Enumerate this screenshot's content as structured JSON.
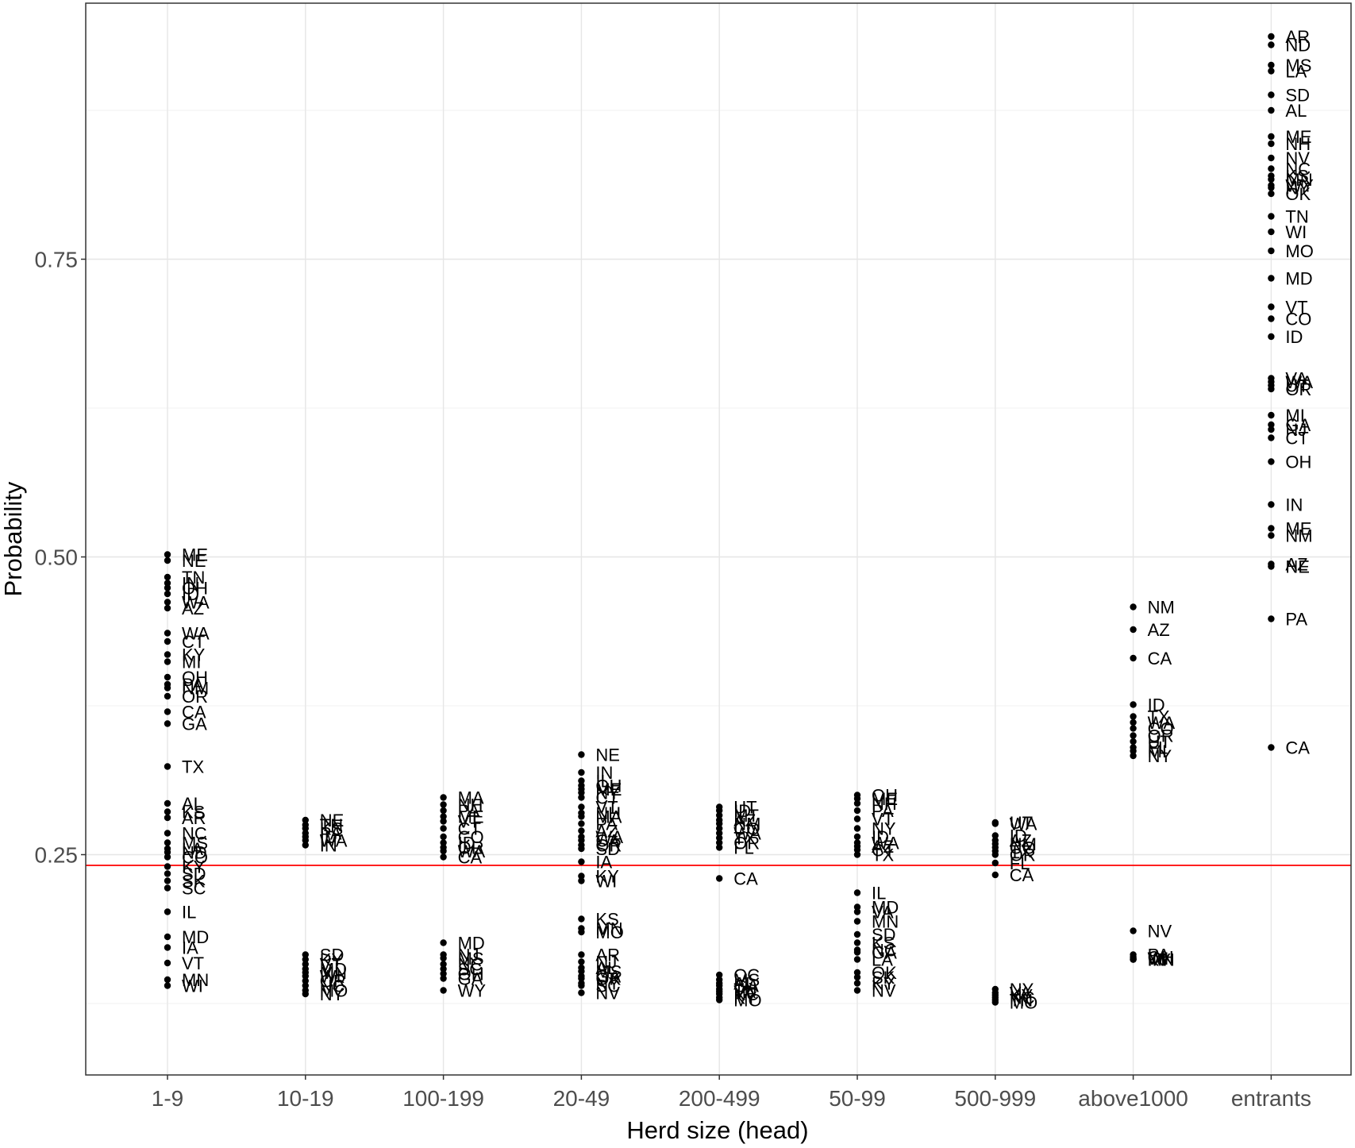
{
  "chart_data": {
    "type": "scatter",
    "xlabel": "Herd size (head)",
    "ylabel": "Probability",
    "categories": [
      "1-9",
      "10-19",
      "100-199",
      "20-49",
      "200-499",
      "50-99",
      "500-999",
      "above1000",
      "entrants"
    ],
    "ylim": [
      0.065,
      0.965
    ],
    "yticks": [
      0.25,
      0.5,
      0.75
    ],
    "ytick_labels": [
      "0.25",
      "0.50",
      "0.75"
    ],
    "reference_line": {
      "y": 0.241,
      "color": "#ff0000"
    },
    "grid": true,
    "legend": "none",
    "point_color": "#000000",
    "series": [
      {
        "category": "1-9",
        "points": [
          [
            "ME",
            0.502
          ],
          [
            "NE",
            0.497
          ],
          [
            "TN",
            0.483
          ],
          [
            "IN",
            0.478
          ],
          [
            "OH",
            0.474
          ],
          [
            "ID",
            0.469
          ],
          [
            "WA",
            0.462
          ],
          [
            "AZ",
            0.457
          ],
          [
            "WA",
            0.436
          ],
          [
            "CT",
            0.429
          ],
          [
            "KY",
            0.418
          ],
          [
            "MI",
            0.412
          ],
          [
            "OH",
            0.399
          ],
          [
            "PA",
            0.393
          ],
          [
            "NM",
            0.39
          ],
          [
            "OR",
            0.383
          ],
          [
            "CA",
            0.37
          ],
          [
            "GA",
            0.36
          ],
          [
            "TX",
            0.324
          ],
          [
            "AL",
            0.293
          ],
          [
            "KS",
            0.286
          ],
          [
            "AR",
            0.281
          ],
          [
            "NC",
            0.268
          ],
          [
            "MS",
            0.26
          ],
          [
            "LA",
            0.255
          ],
          [
            "ND",
            0.252
          ],
          [
            "CO",
            0.248
          ],
          [
            "KY",
            0.24
          ],
          [
            "SD",
            0.234
          ],
          [
            "SK",
            0.228
          ],
          [
            "SC",
            0.222
          ],
          [
            "IL",
            0.202
          ],
          [
            "MD",
            0.181
          ],
          [
            "IA",
            0.172
          ],
          [
            "VT",
            0.159
          ],
          [
            "MN",
            0.145
          ],
          [
            "WI",
            0.14
          ]
        ]
      },
      {
        "category": "10-19",
        "points": [
          [
            "NE",
            0.279
          ],
          [
            "TN",
            0.275
          ],
          [
            "KS",
            0.272
          ],
          [
            "PA",
            0.268
          ],
          [
            "ID",
            0.265
          ],
          [
            "WA",
            0.262
          ],
          [
            "IN",
            0.258
          ],
          [
            "SD",
            0.166
          ],
          [
            "KY",
            0.162
          ],
          [
            "VT",
            0.158
          ],
          [
            "MD",
            0.154
          ],
          [
            "MN",
            0.151
          ],
          [
            "WI",
            0.148
          ],
          [
            "OR",
            0.144
          ],
          [
            "NC",
            0.14
          ],
          [
            "MO",
            0.136
          ],
          [
            "NY",
            0.133
          ]
        ]
      },
      {
        "category": "100-199",
        "points": [
          [
            "MA",
            0.298
          ],
          [
            "NH",
            0.292
          ],
          [
            "PA",
            0.287
          ],
          [
            "ME",
            0.282
          ],
          [
            "VT",
            0.278
          ],
          [
            "CT",
            0.272
          ],
          [
            "CO",
            0.265
          ],
          [
            "ID",
            0.26
          ],
          [
            "OR",
            0.256
          ],
          [
            "WA",
            0.253
          ],
          [
            "CA",
            0.248
          ],
          [
            "MD",
            0.176
          ],
          [
            "NJ",
            0.166
          ],
          [
            "MS",
            0.163
          ],
          [
            "NC",
            0.158
          ],
          [
            "SC",
            0.154
          ],
          [
            "OH",
            0.15
          ],
          [
            "GA",
            0.146
          ],
          [
            "WY",
            0.136
          ]
        ]
      },
      {
        "category": "20-49",
        "points": [
          [
            "NE",
            0.334
          ],
          [
            "IN",
            0.319
          ],
          [
            "IL",
            0.312
          ],
          [
            "OH",
            0.308
          ],
          [
            "ME",
            0.305
          ],
          [
            "NY",
            0.302
          ],
          [
            "CT",
            0.298
          ],
          [
            "VT",
            0.29
          ],
          [
            "NH",
            0.285
          ],
          [
            "MA",
            0.282
          ],
          [
            "PA",
            0.276
          ],
          [
            "AZ",
            0.27
          ],
          [
            "WA",
            0.265
          ],
          [
            "CA",
            0.262
          ],
          [
            "OR",
            0.258
          ],
          [
            "SD",
            0.255
          ],
          [
            "IA",
            0.244
          ],
          [
            "KY",
            0.232
          ],
          [
            "WI",
            0.228
          ],
          [
            "KS",
            0.196
          ],
          [
            "MN",
            0.188
          ],
          [
            "MO",
            0.185
          ],
          [
            "AR",
            0.166
          ],
          [
            "NJ",
            0.16
          ],
          [
            "AL",
            0.155
          ],
          [
            "MS",
            0.152
          ],
          [
            "GA",
            0.148
          ],
          [
            "OK",
            0.146
          ],
          [
            "NY",
            0.142
          ],
          [
            "SC",
            0.14
          ],
          [
            "NV",
            0.134
          ]
        ]
      },
      {
        "category": "200-499",
        "points": [
          [
            "UT",
            0.29
          ],
          [
            "ID",
            0.287
          ],
          [
            "MT",
            0.283
          ],
          [
            "AZ",
            0.279
          ],
          [
            "NM",
            0.276
          ],
          [
            "CO",
            0.272
          ],
          [
            "WA",
            0.268
          ],
          [
            "TX",
            0.264
          ],
          [
            "OR",
            0.26
          ],
          [
            "FL",
            0.256
          ],
          [
            "CA",
            0.23
          ],
          [
            "OC",
            0.149
          ],
          [
            "MS",
            0.145
          ],
          [
            "AL",
            0.142
          ],
          [
            "GA",
            0.14
          ],
          [
            "TN",
            0.137
          ],
          [
            "VA",
            0.135
          ],
          [
            "NC",
            0.133
          ],
          [
            "KY",
            0.13
          ],
          [
            "MO",
            0.128
          ]
        ]
      },
      {
        "category": "50-99",
        "points": [
          [
            "OH",
            0.3
          ],
          [
            "ME",
            0.297
          ],
          [
            "NH",
            0.293
          ],
          [
            "PA",
            0.287
          ],
          [
            "VT",
            0.28
          ],
          [
            "NY",
            0.272
          ],
          [
            "ID",
            0.265
          ],
          [
            "WA",
            0.26
          ],
          [
            "AZ",
            0.257
          ],
          [
            "CT",
            0.254
          ],
          [
            "TX",
            0.25
          ],
          [
            "IL",
            0.218
          ],
          [
            "MD",
            0.206
          ],
          [
            "VA",
            0.202
          ],
          [
            "MN",
            0.194
          ],
          [
            "SD",
            0.183
          ],
          [
            "KS",
            0.176
          ],
          [
            "NC",
            0.17
          ],
          [
            "GA",
            0.168
          ],
          [
            "LA",
            0.162
          ],
          [
            "OK",
            0.151
          ],
          [
            "SK",
            0.147
          ],
          [
            "KY",
            0.142
          ],
          [
            "NV",
            0.136
          ]
        ]
      },
      {
        "category": "500-999",
        "points": [
          [
            "UT",
            0.277
          ],
          [
            "WA",
            0.276
          ],
          [
            "ID",
            0.266
          ],
          [
            "AZ",
            0.262
          ],
          [
            "NM",
            0.259
          ],
          [
            "CO",
            0.256
          ],
          [
            "TX",
            0.253
          ],
          [
            "OR",
            0.25
          ],
          [
            "FL",
            0.243
          ],
          [
            "CA",
            0.233
          ],
          [
            "NY",
            0.137
          ],
          [
            "VA",
            0.134
          ],
          [
            "KY",
            0.132
          ],
          [
            "NC",
            0.13
          ],
          [
            "TN",
            0.128
          ],
          [
            "MO",
            0.126
          ]
        ]
      },
      {
        "category": "above1000",
        "points": [
          [
            "NM",
            0.458
          ],
          [
            "AZ",
            0.439
          ],
          [
            "CA",
            0.415
          ],
          [
            "ID",
            0.376
          ],
          [
            "TX",
            0.366
          ],
          [
            "WA",
            0.361
          ],
          [
            "CO",
            0.356
          ],
          [
            "OR",
            0.35
          ],
          [
            "UT",
            0.345
          ],
          [
            "FL",
            0.34
          ],
          [
            "MI",
            0.337
          ],
          [
            "NY",
            0.333
          ],
          [
            "NV",
            0.186
          ],
          [
            "PA",
            0.166
          ],
          [
            "OH",
            0.164
          ],
          [
            "WI",
            0.163
          ],
          [
            "MN",
            0.162
          ],
          [
            "IN",
            0.162
          ],
          [
            "KY",
            0.162
          ]
        ]
      },
      {
        "category": "entrants",
        "points": [
          [
            "AR",
            0.937
          ],
          [
            "ND",
            0.93
          ],
          [
            "MS",
            0.913
          ],
          [
            "LA",
            0.908
          ],
          [
            "SD",
            0.888
          ],
          [
            "AL",
            0.875
          ],
          [
            "ME",
            0.853
          ],
          [
            "NH",
            0.847
          ],
          [
            "NV",
            0.835
          ],
          [
            "NC",
            0.826
          ],
          [
            "KS",
            0.82
          ],
          [
            "MN",
            0.817
          ],
          [
            "WY",
            0.812
          ],
          [
            "NY",
            0.81
          ],
          [
            "OK",
            0.805
          ],
          [
            "TN",
            0.786
          ],
          [
            "WI",
            0.773
          ],
          [
            "MO",
            0.757
          ],
          [
            "MD",
            0.734
          ],
          [
            "VT",
            0.71
          ],
          [
            "CO",
            0.7
          ],
          [
            "ID",
            0.685
          ],
          [
            "VA",
            0.65
          ],
          [
            "WA",
            0.647
          ],
          [
            "UT",
            0.644
          ],
          [
            "OR",
            0.641
          ],
          [
            "MI",
            0.619
          ],
          [
            "GA",
            0.611
          ],
          [
            "NJ",
            0.607
          ],
          [
            "CT",
            0.6
          ],
          [
            "OH",
            0.58
          ],
          [
            "IN",
            0.544
          ],
          [
            "ME",
            0.524
          ],
          [
            "NM",
            0.518
          ],
          [
            "AZ",
            0.494
          ],
          [
            "NE",
            0.492
          ],
          [
            "PA",
            0.448
          ],
          [
            "CA",
            0.34
          ]
        ]
      }
    ]
  }
}
